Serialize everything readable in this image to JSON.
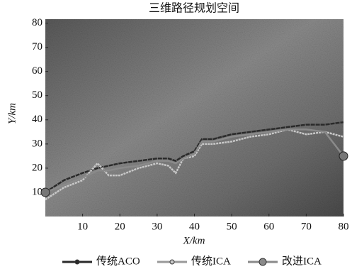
{
  "chart_data": {
    "type": "line",
    "title": "三维路径规划空间",
    "xlabel": "X/km",
    "ylabel": "Y/km",
    "x": [
      0,
      5,
      10,
      14,
      17,
      20,
      25,
      30,
      33,
      35,
      37,
      40,
      42,
      45,
      50,
      55,
      60,
      65,
      70,
      75,
      80
    ],
    "series": [
      {
        "name": "传统ACO",
        "color": "#2a2a2a",
        "values": [
          10,
          15,
          18,
          20,
          21,
          22,
          23,
          24,
          24,
          23,
          25,
          27,
          32,
          32,
          34,
          35,
          36,
          37,
          38,
          38,
          39
        ]
      },
      {
        "name": "传统ICA",
        "color": "#c8c8c8",
        "values": [
          7,
          12,
          15,
          22,
          17,
          17,
          20,
          22,
          21,
          18,
          24,
          25,
          30,
          30,
          31,
          33,
          34,
          36,
          34,
          35,
          33
        ]
      },
      {
        "name": "改进ICA",
        "color": "#8a8a8a",
        "values": [
          10,
          13,
          16,
          19,
          19,
          20,
          21,
          23,
          23,
          22,
          24,
          26,
          31,
          31,
          33,
          34,
          35,
          36,
          36,
          35,
          25
        ]
      }
    ],
    "xlim": [
      0,
      80
    ],
    "ylim": [
      0,
      80
    ],
    "xticks": [
      10,
      20,
      30,
      40,
      50,
      60,
      70,
      80
    ],
    "yticks": [
      10,
      20,
      30,
      40,
      50,
      60,
      70,
      80
    ]
  }
}
